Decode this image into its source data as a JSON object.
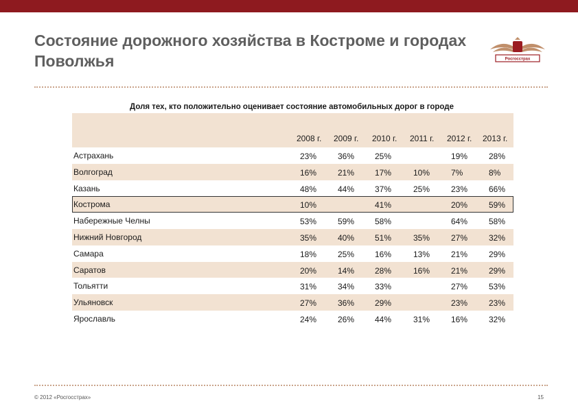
{
  "slide": {
    "title": "Состояние дорожного хозяйства в Костроме и городах Поволжья",
    "logo_text": "Росгосстрах",
    "subtitle": "Доля тех, кто положительно оценивает состояние автомобильных дорог в городе",
    "footer_left": "© 2012 «Росгосстрах»",
    "page_number": "15",
    "colors": {
      "top_bar": "#8e1a1f",
      "shade": "#f2e2d2",
      "dots": "#c9a38a"
    }
  },
  "table": {
    "years": [
      "2008 г.",
      "2009 г.",
      "2010 г.",
      "2011 г.",
      "2012 г.",
      "2013 г."
    ],
    "rows": [
      {
        "city": "Астрахань",
        "values": [
          "23%",
          "36%",
          "25%",
          "",
          "19%",
          "28%"
        ]
      },
      {
        "city": "Волгоград",
        "values": [
          "16%",
          "21%",
          "17%",
          "10%",
          "7%",
          "8%"
        ]
      },
      {
        "city": "Казань",
        "values": [
          "48%",
          "44%",
          "37%",
          "25%",
          "23%",
          "66%"
        ]
      },
      {
        "city": "Кострома",
        "values": [
          "10%",
          "",
          "41%",
          "",
          "20%",
          "59%"
        ]
      },
      {
        "city": "Набережные Челны",
        "values": [
          "53%",
          "59%",
          "58%",
          "",
          "64%",
          "58%"
        ]
      },
      {
        "city": "Нижний Новгород",
        "values": [
          "35%",
          "40%",
          "51%",
          "35%",
          "27%",
          "32%"
        ]
      },
      {
        "city": "Самара",
        "values": [
          "18%",
          "25%",
          "16%",
          "13%",
          "21%",
          "29%"
        ]
      },
      {
        "city": "Саратов",
        "values": [
          "20%",
          "14%",
          "28%",
          "16%",
          "21%",
          "29%"
        ]
      },
      {
        "city": "Тольятти",
        "values": [
          "31%",
          "34%",
          "33%",
          "",
          "27%",
          "53%"
        ]
      },
      {
        "city": "Ульяновск",
        "values": [
          "27%",
          "36%",
          "29%",
          "",
          "23%",
          "23%"
        ]
      },
      {
        "city": "Ярославль",
        "values": [
          "24%",
          "26%",
          "44%",
          "31%",
          "16%",
          "32%"
        ]
      }
    ]
  }
}
